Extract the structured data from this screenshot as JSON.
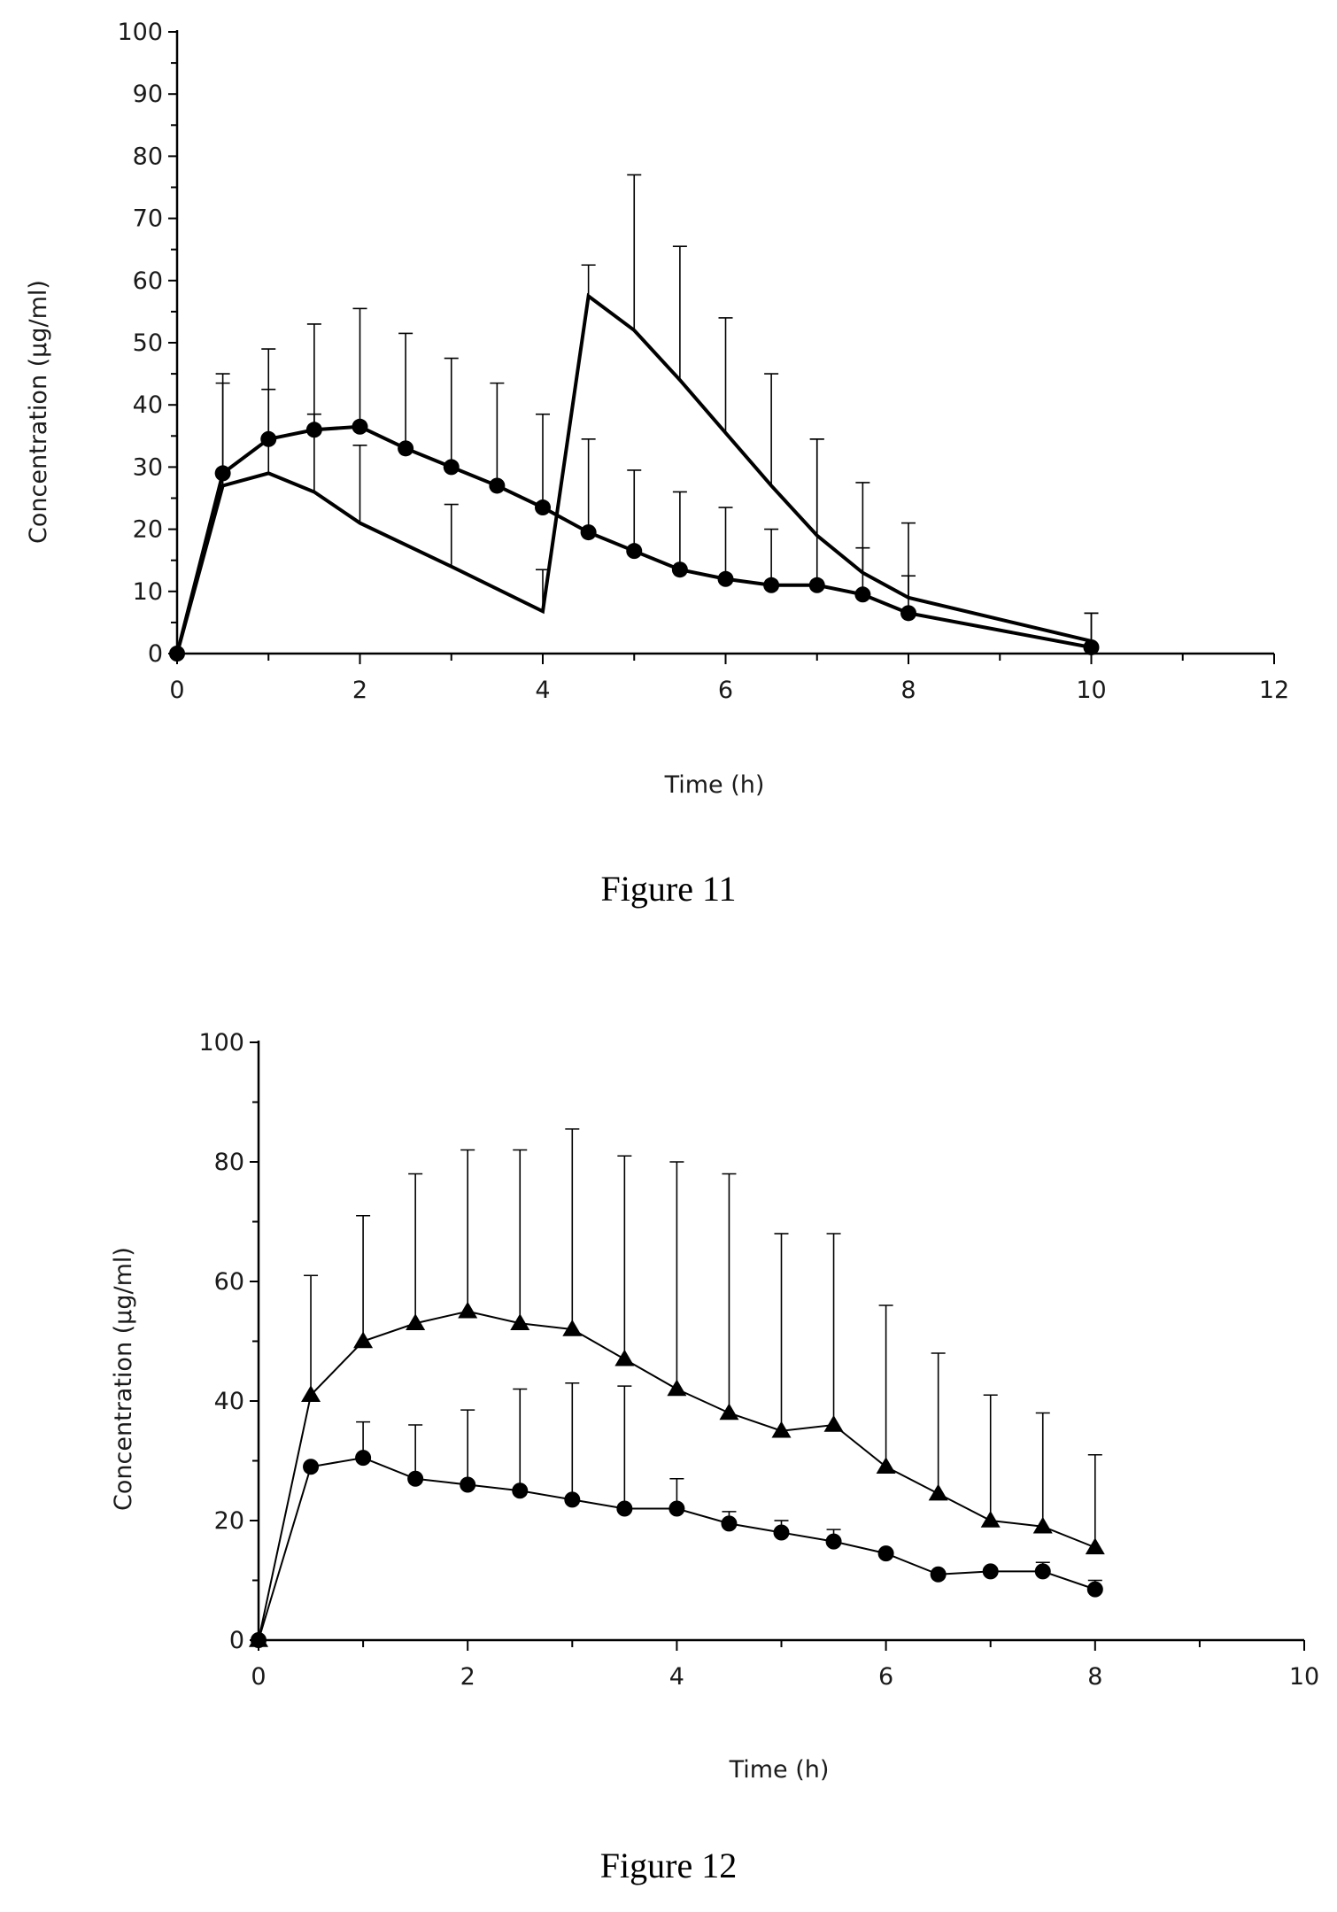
{
  "figures": [
    {
      "caption": "Figure 11",
      "chart_data": {
        "type": "line",
        "title": "",
        "xlabel": "Time (h)",
        "ylabel": "Concentration (µg/ml)",
        "xlim": [
          0,
          12
        ],
        "ylim": [
          0,
          100
        ],
        "x_ticks": [
          0,
          2,
          4,
          6,
          8,
          10,
          12
        ],
        "y_ticks": [
          0,
          10,
          20,
          30,
          40,
          50,
          60,
          70,
          80,
          90,
          100
        ],
        "grid": false,
        "legend": "none",
        "series": [
          {
            "marker": "circle",
            "x": [
              0,
              0.5,
              1,
              1.5,
              2,
              2.5,
              3,
              3.5,
              4,
              4.5,
              5,
              5.5,
              6,
              6.5,
              7,
              7.5,
              8,
              10
            ],
            "y": [
              0,
              29,
              34.5,
              36,
              36.5,
              33,
              30,
              27,
              23.5,
              19.5,
              16.5,
              13.5,
              12,
              11,
              11,
              9.5,
              6.5,
              1
            ],
            "error_upper": [
              0,
              45,
              49,
              53,
              55.5,
              51.5,
              47.5,
              43.5,
              38.5,
              34.5,
              29.5,
              26,
              23.5,
              20,
              34.5,
              27.5,
              21,
              6.5
            ]
          },
          {
            "marker": "none",
            "x": [
              0,
              0.5,
              1,
              1.5,
              2,
              3,
              4,
              4.5,
              5,
              5.5,
              6,
              6.5,
              7,
              7.5,
              8,
              10
            ],
            "y": [
              0,
              27,
              29,
              26,
              21,
              14,
              6.8,
              57.5,
              52,
              44,
              35.5,
              27,
              19,
              13,
              9,
              2
            ],
            "error_upper": [
              0,
              43.5,
              42.5,
              38.5,
              33.5,
              24,
              13.5,
              62.5,
              77,
              65.5,
              54,
              45,
              34.5,
              17,
              12.5,
              6.5
            ]
          }
        ]
      }
    },
    {
      "caption": "Figure 12",
      "chart_data": {
        "type": "line",
        "title": "",
        "xlabel": "Time (h)",
        "ylabel": "Concentration (µg/ml)",
        "xlim": [
          0,
          10
        ],
        "ylim": [
          0,
          100
        ],
        "x_ticks": [
          0,
          2,
          4,
          6,
          8,
          10
        ],
        "y_ticks": [
          0,
          20,
          40,
          60,
          80,
          100
        ],
        "grid": false,
        "legend": "none",
        "series": [
          {
            "marker": "triangle",
            "x": [
              0,
              0.5,
              1,
              1.5,
              2,
              2.5,
              3,
              3.5,
              4,
              4.5,
              5,
              5.5,
              6,
              6.5,
              7,
              7.5,
              8
            ],
            "y": [
              0,
              41,
              50,
              53,
              55,
              53,
              52,
              47,
              42,
              38,
              35,
              36,
              29,
              24.5,
              20,
              19,
              15.5
            ],
            "error_upper": [
              0,
              61,
              71,
              78,
              82,
              82,
              85.5,
              81,
              80,
              78,
              68,
              68,
              56,
              48,
              41,
              38,
              31
            ]
          },
          {
            "marker": "circle",
            "x": [
              0,
              0.5,
              1,
              1.5,
              2,
              2.5,
              3,
              3.5,
              4,
              4.5,
              5,
              5.5,
              6,
              6.5,
              7,
              7.5,
              8
            ],
            "y": [
              0,
              29,
              30.5,
              27,
              26,
              25,
              23.5,
              22,
              22,
              19.5,
              18,
              16.5,
              14.5,
              11,
              11.5,
              11.5,
              8.5
            ],
            "error_upper": [
              0,
              29,
              36.5,
              36,
              38.5,
              42,
              43,
              42.5,
              27,
              21.5,
              20,
              18.5,
              14.5,
              11,
              12,
              13,
              10
            ]
          }
        ]
      }
    }
  ]
}
